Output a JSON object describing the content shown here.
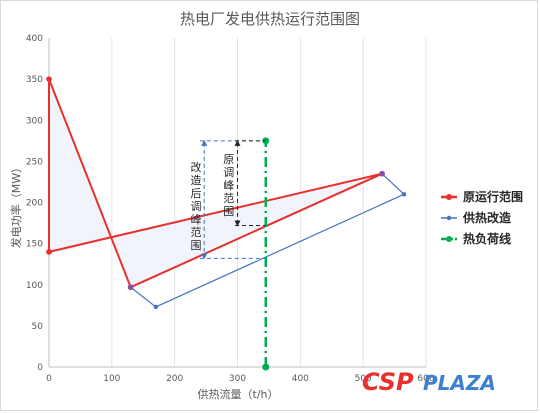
{
  "chart_data": {
    "type": "scatter",
    "title": "热电厂发电供热运行范围图",
    "xlabel": "供热流量（t/h）",
    "ylabel": "发电功率（MW）",
    "xlim": [
      0,
      600
    ],
    "ylim": [
      0,
      400
    ],
    "xticks": [
      "0",
      "100",
      "200",
      "300",
      "400",
      "500",
      "600"
    ],
    "yticks": [
      "0",
      "50",
      "100",
      "150",
      "200",
      "250",
      "300",
      "350",
      "400"
    ],
    "grid": "vertical",
    "legend_position": "right",
    "series": [
      {
        "name": "原运行范围",
        "color": "#e8302e",
        "marker": "circle",
        "x": [
          0,
          0,
          130,
          530,
          0
        ],
        "y": [
          140,
          350,
          97,
          235,
          140
        ],
        "closed_region_fill": "#f2f4fb"
      },
      {
        "name": "供热改造",
        "color": "#4472c4",
        "marker": "circle",
        "x": [
          130,
          170,
          565,
          530
        ],
        "y": [
          97,
          73,
          210,
          235
        ]
      },
      {
        "name": "热负荷线",
        "color": "#00b050",
        "style": "dash-dot",
        "x": [
          345,
          345
        ],
        "y": [
          0,
          275
        ]
      }
    ],
    "annotations": [
      {
        "text": "原调峰范围",
        "range_y": [
          172,
          275
        ],
        "x": 345
      },
      {
        "text": "改造后调峰范围",
        "range_y": [
          132,
          275
        ],
        "x": 345
      }
    ]
  },
  "watermark": {
    "part1": "CSP",
    "part2": "PLAZA",
    "color1": "#e8302e",
    "color2": "#3f7fd0"
  }
}
